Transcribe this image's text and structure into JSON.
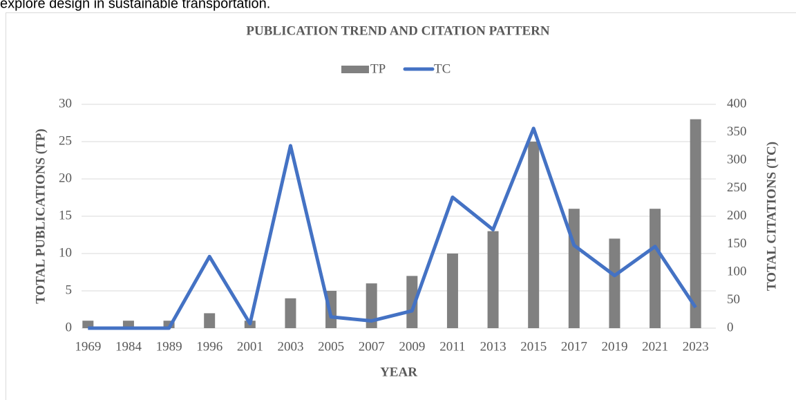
{
  "caption": "explore design in sustainable transportation.",
  "chart_data": {
    "type": "bar-line",
    "title": "PUBLICATION TREND AND CITATION PATTERN",
    "x_label": "YEAR",
    "y_label": "TOTAL PUBLICATIONS (TP)",
    "y2_label": "TOTAL CITATIONS (TC)",
    "categories": [
      "1969",
      "1984",
      "1989",
      "1996",
      "2001",
      "2003",
      "2005",
      "2007",
      "2009",
      "2011",
      "2013",
      "2015",
      "2017",
      "2019",
      "2021",
      "2023"
    ],
    "series": [
      {
        "name": "TP",
        "type": "bar",
        "color": "#808080",
        "values": [
          1,
          1,
          1,
          2,
          1,
          4,
          5,
          6,
          7,
          10,
          13,
          25,
          16,
          12,
          16,
          28
        ]
      },
      {
        "name": "TC",
        "type": "line",
        "axis": "y2",
        "color": "#4472c4",
        "values": [
          0,
          0,
          0,
          128,
          8,
          326,
          20,
          13,
          31,
          234,
          176,
          357,
          148,
          94,
          146,
          37
        ]
      }
    ],
    "ylim": [
      0,
      30
    ],
    "yticks": [
      0,
      5,
      10,
      15,
      20,
      25,
      30
    ],
    "y2lim": [
      0,
      400
    ],
    "y2ticks": [
      0,
      50,
      100,
      150,
      200,
      250,
      300,
      350,
      400
    ],
    "grid": true,
    "legend": "top"
  }
}
